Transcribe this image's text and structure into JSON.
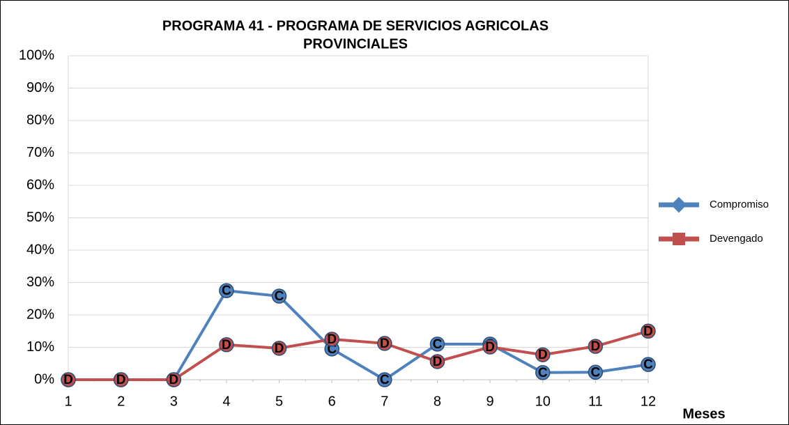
{
  "chart_data": {
    "type": "line",
    "title": [
      "PROGRAMA 41 - PROGRAMA DE SERVICIOS AGRICOLAS",
      "PROVINCIALES"
    ],
    "x_label": "Meses",
    "categories": [
      "1",
      "2",
      "3",
      "4",
      "5",
      "6",
      "7",
      "8",
      "9",
      "10",
      "11",
      "12"
    ],
    "series": [
      {
        "name": "Compromiso",
        "color": "#4f81bd",
        "point_label": "C",
        "values": [
          0,
          0,
          0,
          27.5,
          25.8,
          9.5,
          0,
          11,
          11,
          2.2,
          2.3,
          4.7
        ]
      },
      {
        "name": "Devengado",
        "color": "#c0504d",
        "point_label": "D",
        "values": [
          0,
          0,
          0,
          10.8,
          9.7,
          12.5,
          11.2,
          5.6,
          10.1,
          7.7,
          10.3,
          15
        ]
      }
    ],
    "ylim": [
      0,
      100
    ],
    "yticks": [
      {
        "value": 0,
        "label": "0%"
      },
      {
        "value": 10,
        "label": "10%"
      },
      {
        "value": 20,
        "label": "20%"
      },
      {
        "value": 30,
        "label": "30%"
      },
      {
        "value": 40,
        "label": "40%"
      },
      {
        "value": 50,
        "label": "50%"
      },
      {
        "value": 60,
        "label": "60%"
      },
      {
        "value": 70,
        "label": "70%"
      },
      {
        "value": 80,
        "label": "80%"
      },
      {
        "value": 90,
        "label": "90%"
      },
      {
        "value": 100,
        "label": "100%"
      }
    ],
    "grid": true,
    "legend": "right"
  }
}
